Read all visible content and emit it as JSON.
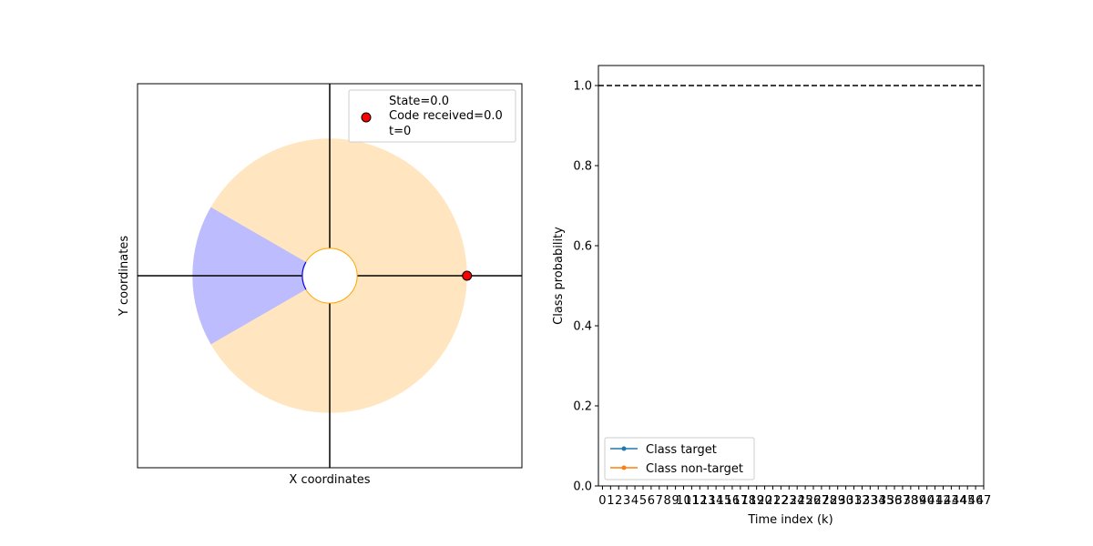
{
  "chart_data": [
    {
      "type": "scatter",
      "title": "",
      "xlabel": "X coordinates",
      "ylabel": "Y coordinates",
      "xticks": [],
      "yticks": [],
      "grid": false,
      "shapes": [
        {
          "name": "sector-ring",
          "kind": "annulus",
          "color": "#ffe6c0",
          "inner_radius": 0.2,
          "outer_radius": 1.0,
          "center": [
            0,
            0
          ]
        },
        {
          "name": "target-sector",
          "kind": "wedge",
          "color": "#bcbcff",
          "theta_start_deg": 150,
          "theta_end_deg": 210,
          "inner_radius": 0.2,
          "outer_radius": 1.0
        },
        {
          "name": "inner-circle",
          "kind": "circle",
          "radius": 0.2,
          "edge_color": "#ffa500",
          "arc_color_in_sector": "#0000ff",
          "fill": "#ffffff"
        }
      ],
      "agent_point": {
        "x": 1.0,
        "y": 0.0,
        "color": "#ff0000"
      },
      "xlim": [
        -1.4,
        1.4
      ],
      "ylim": [
        -1.4,
        1.4
      ],
      "legend": {
        "position": "top-right",
        "lines": [
          "State=0.0",
          "Code received=0.0",
          "t=0"
        ]
      }
    },
    {
      "type": "line",
      "title": "",
      "xlabel": "Time index (k)",
      "ylabel": "Class probability",
      "xlim": [
        -0.5,
        47
      ],
      "ylim": [
        0,
        1.05
      ],
      "x_ticks": [
        0,
        1,
        2,
        3,
        4,
        5,
        6,
        7,
        8,
        9,
        10,
        11,
        12,
        13,
        14,
        15,
        16,
        17,
        18,
        19,
        20,
        21,
        22,
        23,
        24,
        25,
        26,
        27,
        28,
        29,
        30,
        31,
        32,
        33,
        34,
        35,
        36,
        37,
        38,
        39,
        40,
        41,
        42,
        43,
        44,
        45,
        46,
        47
      ],
      "y_ticks": [
        "0.0",
        "0.2",
        "0.4",
        "0.6",
        "0.8",
        "1.0"
      ],
      "y_tick_values": [
        0,
        0.2,
        0.4,
        0.6,
        0.8,
        1.0
      ],
      "threshold": 1.0,
      "series": [
        {
          "name": "Class target",
          "color": "#1f77b4",
          "x": [],
          "y": []
        },
        {
          "name": "Class non-target",
          "color": "#ff7f0e",
          "x": [],
          "y": []
        }
      ],
      "legend": {
        "position": "bottom-left"
      },
      "grid": false
    }
  ]
}
